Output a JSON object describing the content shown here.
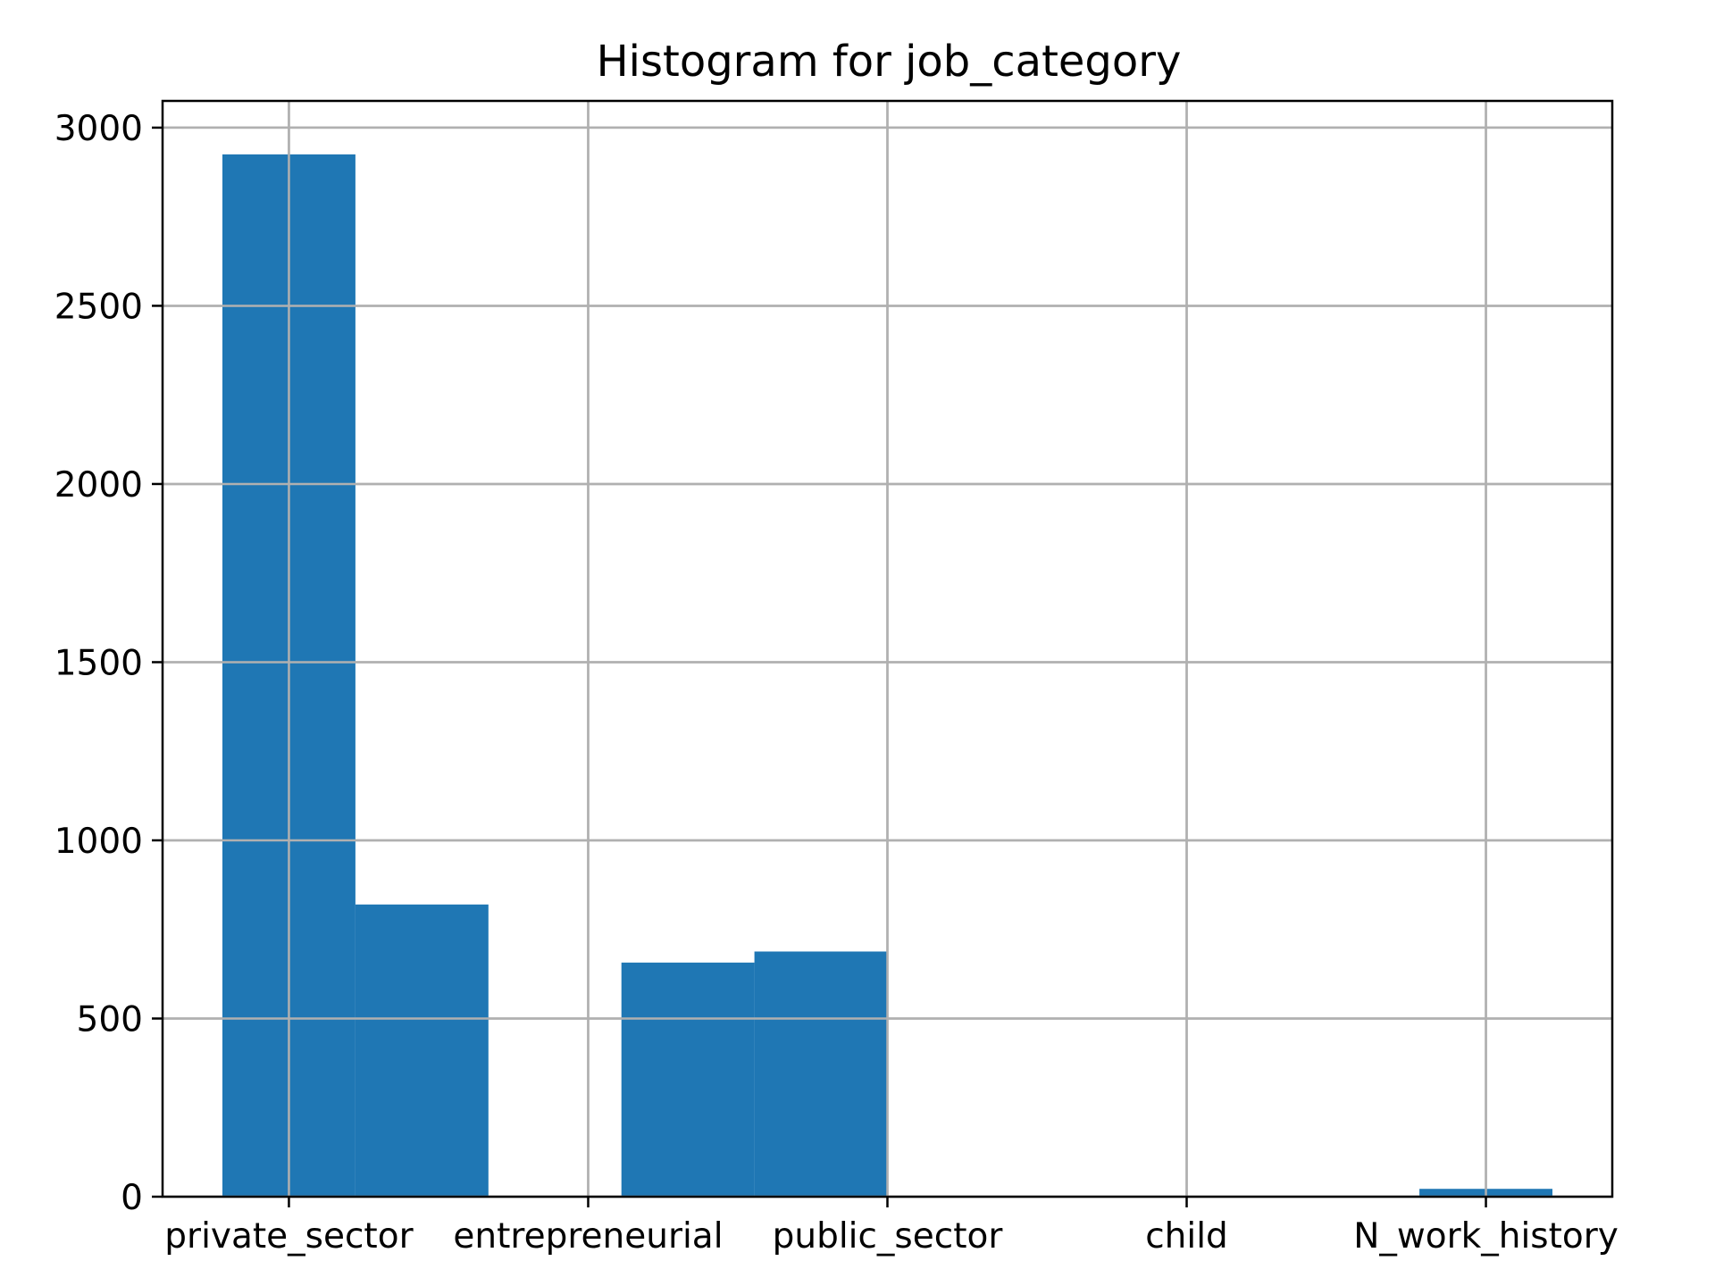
{
  "chart_data": {
    "type": "bar",
    "title": "Histogram for job_category",
    "xlabel": "",
    "ylabel": "",
    "categories": [
      "private_sector",
      "entrepreneurial",
      "public_sector",
      "child",
      "N_work_history"
    ],
    "bins": [
      {
        "value": 2925
      },
      {
        "value": 820
      },
      {
        "value": 0
      },
      {
        "value": 657
      },
      {
        "value": 688
      },
      {
        "value": 0
      },
      {
        "value": 0
      },
      {
        "value": 0
      },
      {
        "value": 0
      },
      {
        "value": 22
      }
    ],
    "yticks": [
      "0",
      "500",
      "1000",
      "1500",
      "2000",
      "2500",
      "3000"
    ],
    "ylim": [
      0,
      3075
    ],
    "grid": true,
    "bar_color": "#1f77b4",
    "grid_color": "#b0b0b0"
  }
}
